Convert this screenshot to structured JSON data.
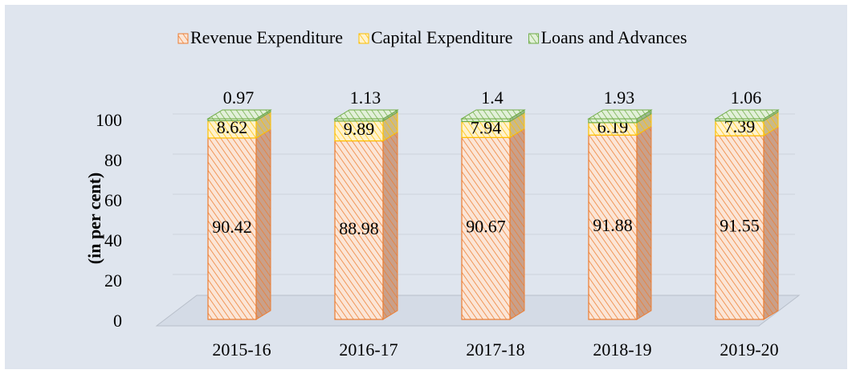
{
  "chart_data": {
    "type": "bar3d_stacked",
    "y_label": "(in per cent)",
    "categories": [
      "2015-16",
      "2016-17",
      "2017-18",
      "2018-19",
      "2019-20"
    ],
    "series": [
      {
        "name": "Revenue Expenditure",
        "color": "#ed7d31",
        "values": [
          90.42,
          88.98,
          90.67,
          91.88,
          91.55
        ]
      },
      {
        "name": "Capital Expenditure",
        "color": "#ffc000",
        "values": [
          8.62,
          9.89,
          7.94,
          6.19,
          7.39
        ]
      },
      {
        "name": "Loans and Advances",
        "color": "#70ad47",
        "values": [
          0.97,
          1.13,
          1.4,
          1.93,
          1.06
        ]
      }
    ],
    "ylim": [
      0,
      100
    ],
    "yticks": [
      0,
      20,
      40,
      60,
      80,
      100
    ],
    "grid": true,
    "legend": "top"
  }
}
